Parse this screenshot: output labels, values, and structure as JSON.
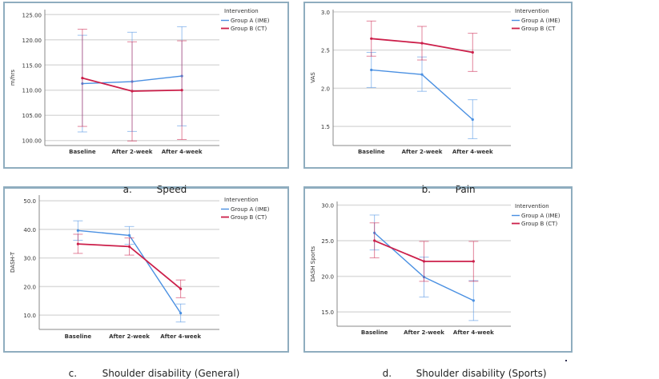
{
  "legend_title": "Intervention",
  "colors": {
    "group_a": "#4a90e2",
    "group_b": "#cc1f4a",
    "grid": "#dcdcdc",
    "axis": "#888888"
  },
  "chart_data": [
    {
      "id": "a",
      "type": "line",
      "caption_letter": "a.",
      "caption": "Speed",
      "xlabel": "",
      "ylabel": "m/hrs",
      "categories": [
        "Baseline",
        "After 2-week",
        "After 4-week"
      ],
      "ylim": [
        99,
        126
      ],
      "yticks": [
        100,
        105,
        110,
        115,
        120,
        125
      ],
      "ytick_labels": [
        "100.00",
        "105.00",
        "110.00",
        "115.00",
        "120.00",
        "125.00"
      ],
      "grid": true,
      "legend": "top-right",
      "series": [
        {
          "name": "Group A (IME)",
          "color_key": "group_a",
          "values": [
            111.3,
            111.7,
            112.8
          ],
          "err_low": [
            101.7,
            101.8,
            102.9
          ],
          "err_high": [
            120.9,
            121.5,
            122.6
          ]
        },
        {
          "name": "Group B (CT)",
          "color_key": "group_b",
          "values": [
            112.4,
            109.8,
            110.0
          ],
          "err_low": [
            102.8,
            99.9,
            100.2
          ],
          "err_high": [
            122.1,
            119.6,
            119.8
          ]
        }
      ]
    },
    {
      "id": "b",
      "type": "line",
      "caption_letter": "b.",
      "caption": "Pain",
      "xlabel": "",
      "ylabel": "VAS",
      "categories": [
        "Baseline",
        "After 2-week",
        "After 4-week"
      ],
      "ylim": [
        1.25,
        3.03
      ],
      "yticks": [
        1.5,
        2.0,
        2.5,
        3.0
      ],
      "ytick_labels": [
        "1.5",
        "2.0",
        "2.5",
        "3.0"
      ],
      "grid": true,
      "legend": "top-right",
      "series": [
        {
          "name": "Group A (IME)",
          "color_key": "group_a",
          "values": [
            2.24,
            2.18,
            1.59
          ],
          "err_low": [
            2.01,
            1.96,
            1.34
          ],
          "err_high": [
            2.47,
            2.41,
            1.85
          ]
        },
        {
          "name": "Group B (CT",
          "color_key": "group_b",
          "values": [
            2.65,
            2.59,
            2.47
          ],
          "err_low": [
            2.42,
            2.37,
            2.22
          ],
          "err_high": [
            2.88,
            2.81,
            2.72
          ]
        }
      ]
    },
    {
      "id": "c",
      "type": "line",
      "caption_letter": "c.",
      "caption": "Shoulder disability (General)",
      "xlabel": "",
      "ylabel": "DASH-T",
      "categories": [
        "Baseline",
        "After 2-week",
        "After 4-week"
      ],
      "ylim": [
        5,
        52
      ],
      "yticks": [
        10,
        20,
        30,
        40,
        50
      ],
      "ytick_labels": [
        "10.0",
        "20.0",
        "30.0",
        "40.0",
        "50.0"
      ],
      "grid": true,
      "legend": "top-right",
      "series": [
        {
          "name": "Group A (IME)",
          "color_key": "group_a",
          "values": [
            39.6,
            37.9,
            10.7
          ],
          "err_low": [
            36.2,
            34.8,
            7.6
          ],
          "err_high": [
            43.0,
            41.0,
            13.9
          ]
        },
        {
          "name": "Group B (CT)",
          "color_key": "group_b",
          "values": [
            34.9,
            34.0,
            19.2
          ],
          "err_low": [
            31.6,
            31.0,
            16.1
          ],
          "err_high": [
            38.3,
            37.0,
            22.3
          ]
        }
      ]
    },
    {
      "id": "d",
      "type": "line",
      "caption_letter": "d.",
      "caption": "Shoulder disability (Sports)",
      "xlabel": "",
      "ylabel": "DASH Sports",
      "categories": [
        "Baseline",
        "After 2-week",
        "After 4-week"
      ],
      "ylim": [
        13,
        30.5
      ],
      "yticks": [
        15,
        20,
        25,
        30
      ],
      "ytick_labels": [
        "15.0",
        "20.0",
        "25.0",
        "30.0"
      ],
      "grid": true,
      "legend": "top-right",
      "series": [
        {
          "name": "Group A (IME)",
          "color_key": "group_a",
          "values": [
            26.1,
            19.9,
            16.6
          ],
          "err_low": [
            23.7,
            17.1,
            13.8
          ],
          "err_high": [
            28.6,
            22.7,
            19.4
          ]
        },
        {
          "name": "Group B (CT)",
          "color_key": "group_b",
          "values": [
            25.0,
            22.1,
            22.1
          ],
          "err_low": [
            22.6,
            19.3,
            19.3
          ],
          "err_high": [
            27.5,
            24.9,
            24.9
          ]
        }
      ]
    }
  ]
}
